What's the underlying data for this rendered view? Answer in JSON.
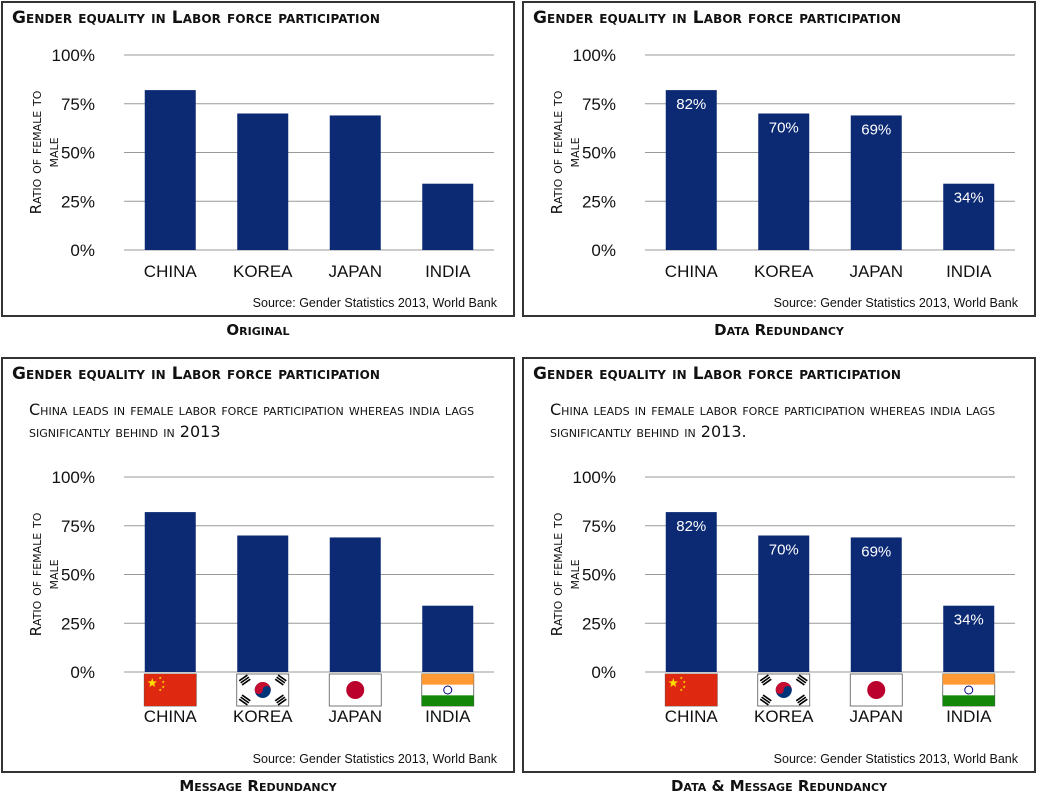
{
  "chart_data": [
    {
      "type": "bar",
      "id": "original",
      "title": "Gender equality in Labor force participation",
      "message": "",
      "categories": [
        "CHINA",
        "KOREA",
        "JAPAN",
        "INDIA"
      ],
      "values": [
        82,
        70,
        69,
        34
      ],
      "value_labels": [],
      "ylabel": "Ratio of female to male",
      "ylim": [
        0,
        100
      ],
      "yticks": [
        "0%",
        "25%",
        "50%",
        "75%",
        "100%"
      ],
      "grid": true,
      "flags": false,
      "source": "Source: Gender Statistics 2013, World Bank",
      "caption": "Original"
    },
    {
      "type": "bar",
      "id": "data-redundancy",
      "title": "Gender equality in Labor force participation",
      "message": "",
      "categories": [
        "CHINA",
        "KOREA",
        "JAPAN",
        "INDIA"
      ],
      "values": [
        82,
        70,
        69,
        34
      ],
      "value_labels": [
        "82%",
        "70%",
        "69%",
        "34%"
      ],
      "ylabel": "Ratio of female to male",
      "ylim": [
        0,
        100
      ],
      "yticks": [
        "0%",
        "25%",
        "50%",
        "75%",
        "100%"
      ],
      "grid": true,
      "flags": false,
      "source": "Source: Gender Statistics 2013, World Bank",
      "caption": "Data Redundancy"
    },
    {
      "type": "bar",
      "id": "message-redundancy",
      "title": "Gender equality in Labor force participation",
      "message": "China leads in female labor force participation whereas india lags significantly behind in 2013",
      "categories": [
        "CHINA",
        "KOREA",
        "JAPAN",
        "INDIA"
      ],
      "values": [
        82,
        70,
        69,
        34
      ],
      "value_labels": [],
      "ylabel": "Ratio of female to male",
      "ylim": [
        0,
        100
      ],
      "yticks": [
        "0%",
        "25%",
        "50%",
        "75%",
        "100%"
      ],
      "grid": true,
      "flags": true,
      "source": "Source: Gender Statistics 2013, World Bank",
      "caption": "Message Redundancy"
    },
    {
      "type": "bar",
      "id": "data-message-redundancy",
      "title": "Gender equality in Labor force participation",
      "message": "China leads in female labor force participation whereas india lags significantly behind in 2013.",
      "categories": [
        "CHINA",
        "KOREA",
        "JAPAN",
        "INDIA"
      ],
      "values": [
        82,
        70,
        69,
        34
      ],
      "value_labels": [
        "82%",
        "70%",
        "69%",
        "34%"
      ],
      "ylabel": "Ratio of female to male",
      "ylim": [
        0,
        100
      ],
      "yticks": [
        "0%",
        "25%",
        "50%",
        "75%",
        "100%"
      ],
      "grid": true,
      "flags": true,
      "source": "Source: Gender Statistics 2013, World Bank",
      "caption": "Data & Message Redundancy"
    }
  ],
  "colors": {
    "bar": "#0c2a74",
    "grid": "#9a9a9a",
    "border": "#333333",
    "value_label": "#ffffff"
  },
  "flag_icons": [
    "china-flag-icon",
    "korea-flag-icon",
    "japan-flag-icon",
    "india-flag-icon"
  ]
}
